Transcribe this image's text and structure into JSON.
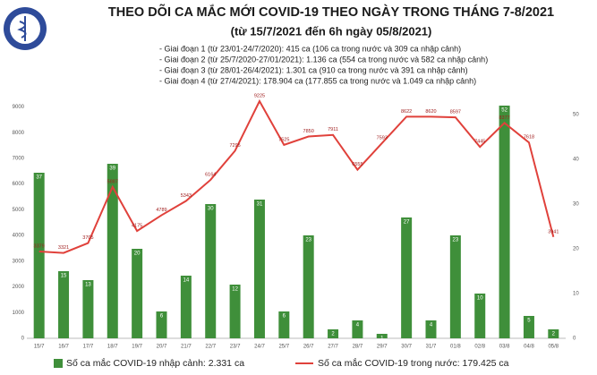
{
  "chart_data": {
    "type": "combo",
    "title": "THEO DÕI CA MẮC MỚI COVID-19 THEO NGÀY TRONG THÁNG 7-8/2021",
    "subtitle": "(từ 15/7/2021 đến 6h ngày 05/8/2021)",
    "annotations": [
      "- Giai đoạn 1 (từ 23/01-24/7/2020): 415 ca (106 ca trong nước và 309 ca nhập cảnh)",
      "- Giai đoạn 2 (từ 25/7/2020-27/01/2021): 1.136 ca (554 ca trong nước và 582 ca nhập cảnh)",
      "- Giai đoạn 3 (từ 28/01-26/4/2021): 1.301 ca (910 ca trong nước và 391 ca nhập cảnh)",
      "- Giai đoạn 4 (từ 27/4/2021): 178.904 ca (177.855 ca trong nước và 1.049 ca nhập cảnh)"
    ],
    "categories": [
      "15/7",
      "16/7",
      "17/7",
      "18/7",
      "19/7",
      "20/7",
      "21/7",
      "22/7",
      "23/7",
      "24/7",
      "25/7",
      "26/7",
      "27/7",
      "28/7",
      "29/7",
      "30/7",
      "31/7",
      "01/8",
      "02/8",
      "03/8",
      "04/8",
      "05/8"
    ],
    "series": [
      {
        "name": "Số ca mắc COVID-19 nhập cảnh: 2.331 ca",
        "type": "bar",
        "axis": "y2",
        "color": "#3f8f3a",
        "values": [
          37,
          15,
          13,
          39,
          20,
          6,
          14,
          30,
          12,
          31,
          6,
          23,
          2,
          4,
          1,
          27,
          4,
          23,
          10,
          52,
          5,
          2
        ]
      },
      {
        "name": "Số ca mắc COVID-19 trong nước: 179.425 ca",
        "type": "line",
        "color": "#e0413b",
        "values": [
          3379,
          3321,
          3705,
          5887,
          4175,
          4789,
          5343,
          6164,
          7295,
          9225,
          7525,
          7850,
          7911,
          6555,
          7593,
          8622,
          8620,
          8597,
          7445,
          8377,
          7618,
          3941
        ]
      }
    ],
    "ylim": [
      0,
      9400
    ],
    "yticks": [
      0,
      1000,
      2000,
      3000,
      4000,
      5000,
      6000,
      7000,
      8000,
      9000
    ],
    "y2lim": [
      0,
      54
    ],
    "y2ticks": [
      0,
      10,
      20,
      30,
      40,
      50
    ],
    "grid": false
  }
}
